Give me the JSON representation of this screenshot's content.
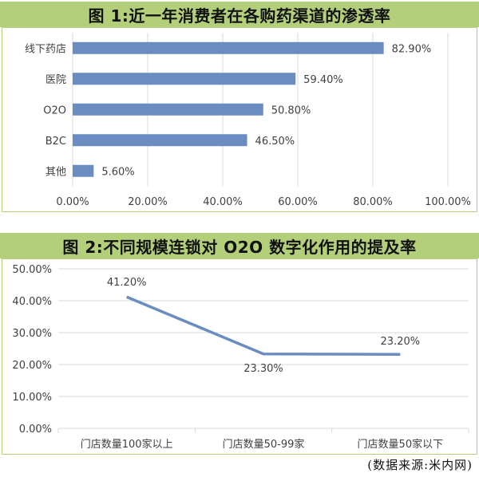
{
  "colors": {
    "accent": "#b4cf7a",
    "bar": "#6a8cc0",
    "line": "#6a8cc0",
    "grid": "#d9d9d9",
    "text": "#404040"
  },
  "chart_data": [
    {
      "type": "bar",
      "orientation": "horizontal",
      "title": "图 1:近一年消费者在各购药渠道的渗透率",
      "categories": [
        "线下药店",
        "医院",
        "O2O",
        "B2C",
        "其他"
      ],
      "values": [
        82.9,
        59.4,
        50.8,
        46.5,
        5.6
      ],
      "value_labels": [
        "82.90%",
        "59.40%",
        "50.80%",
        "46.50%",
        "5.60%"
      ],
      "xlim": [
        0,
        100
      ],
      "x_ticks": [
        "0.00%",
        "20.00%",
        "40.00%",
        "60.00%",
        "80.00%",
        "100.00%"
      ],
      "grid": true
    },
    {
      "type": "line",
      "title": "图 2:不同规模连锁对 O2O 数字化作用的提及率",
      "categories": [
        "门店数量100家以上",
        "门店数量50-99家",
        "门店数量50家以下"
      ],
      "values": [
        41.2,
        23.3,
        23.2
      ],
      "value_labels": [
        "41.20%",
        "23.30%",
        "23.20%"
      ],
      "ylim": [
        0,
        50
      ],
      "y_ticks": [
        "0.00%",
        "10.00%",
        "20.00%",
        "30.00%",
        "40.00%",
        "50.00%"
      ],
      "grid": true
    }
  ],
  "source": "(数据来源:米内网)"
}
